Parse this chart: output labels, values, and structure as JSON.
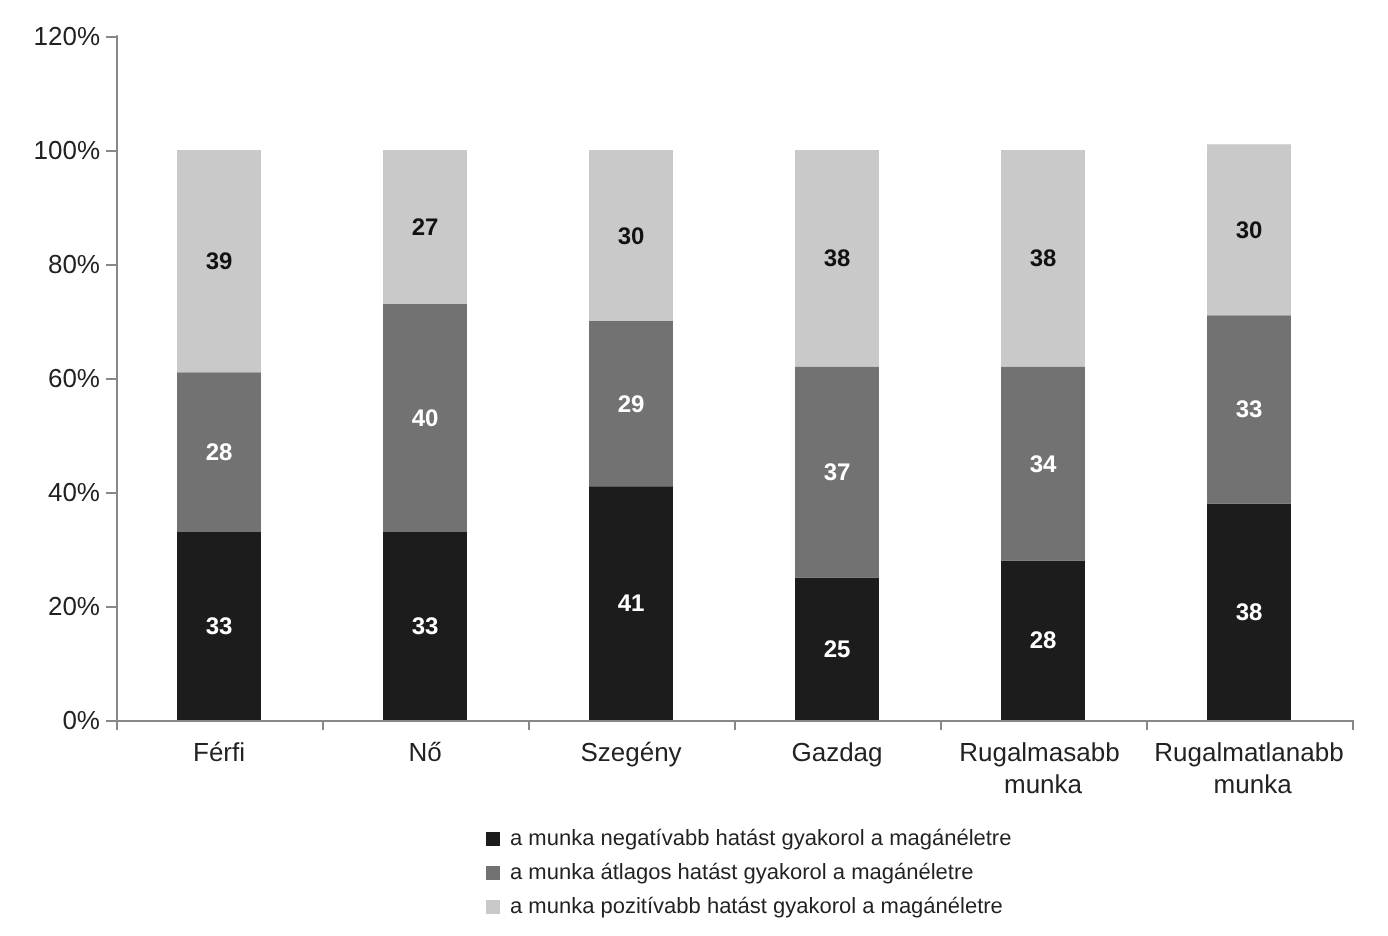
{
  "chart_data": {
    "type": "bar",
    "stacked": true,
    "data_labels": true,
    "grid": false,
    "legend": "bottom",
    "categories": [
      "Férfi",
      "Nő",
      "Szegény",
      "Gazdag",
      "Rugalmasabb munka",
      "Rugalmatlanabb munka"
    ],
    "ylim": [
      0,
      120
    ],
    "yticks": [
      {
        "value": 0,
        "label": "0%"
      },
      {
        "value": 20,
        "label": "20%"
      },
      {
        "value": 40,
        "label": "40%"
      },
      {
        "value": 60,
        "label": "60%"
      },
      {
        "value": 80,
        "label": "80%"
      },
      {
        "value": 100,
        "label": "100%"
      },
      {
        "value": 120,
        "label": "120%"
      }
    ],
    "series": [
      {
        "name": "a munka negatívabb hatást gyakorol a magánéletre",
        "color": "#1c1c1c",
        "values": [
          33,
          33,
          41,
          25,
          28,
          38
        ]
      },
      {
        "name": "a munka átlagos hatást gyakorol a magánéletre",
        "color": "#727272",
        "values": [
          28,
          40,
          29,
          37,
          34,
          33
        ]
      },
      {
        "name": "a munka pozitívabb hatást gyakorol a magánéletre",
        "color": "#c9c9c9",
        "values": [
          39,
          27,
          30,
          38,
          38,
          30
        ]
      }
    ]
  }
}
